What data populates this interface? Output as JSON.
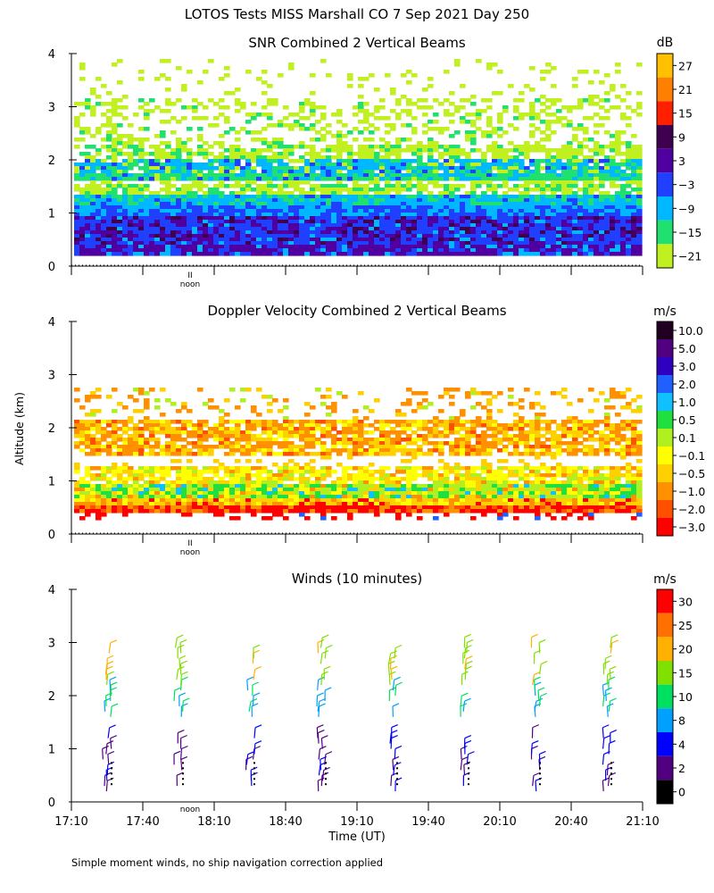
{
  "title": "LOTOS Tests MISS Marshall CO   7 Sep 2021 Day 250",
  "footnote": "Simple moment winds, no ship navigation correction applied",
  "ylabel": "Altitude (km)",
  "xlabel": "Time (UT)",
  "noon_label": "noon",
  "noon_mark": "II",
  "colors": {
    "background": "#ffffff",
    "axis": "#000000"
  },
  "chart_data": [
    {
      "type": "heatmap",
      "title": "SNR Combined 2 Vertical Beams",
      "ylabel": "Altitude (km)",
      "yticks": [
        "0",
        "1",
        "2",
        "3",
        "4"
      ],
      "ylim": [
        0,
        4
      ],
      "xlim_minutes_ut": [
        1030,
        1270
      ],
      "colorbar": {
        "unit": "dB",
        "labels": [
          "27",
          "21",
          "15",
          "9",
          "3",
          "−3",
          "−9",
          "−15",
          "−21"
        ],
        "colors": [
          "#ffc000",
          "#ff8000",
          "#ff2000",
          "#400050",
          "#5000a0",
          "#2040ff",
          "#00b8ff",
          "#20e070",
          "#c0f020"
        ]
      },
      "layers": [
        {
          "description": "strong echo",
          "alt_km": [
            0.25,
            1.05
          ],
          "values_db": [
            -3,
            9
          ]
        },
        {
          "description": "moderate echo",
          "alt_km": [
            1.05,
            1.5
          ],
          "values_db": [
            -15,
            -3
          ]
        },
        {
          "description": "elevated layer",
          "alt_km": [
            1.6,
            2.3
          ],
          "values_db": [
            -21,
            -3
          ]
        },
        {
          "description": "weak echo",
          "alt_km": [
            2.3,
            3.9
          ],
          "values_db": [
            -21,
            -15
          ]
        }
      ]
    },
    {
      "type": "heatmap",
      "title": "Doppler Velocity Combined 2 Vertical Beams",
      "ylabel": "Altitude (km)",
      "yticks": [
        "0",
        "1",
        "2",
        "3",
        "4"
      ],
      "ylim": [
        0,
        4
      ],
      "xlim_minutes_ut": [
        1030,
        1270
      ],
      "colorbar": {
        "unit": "m/s",
        "labels": [
          "10.0",
          "5.0",
          "3.0",
          "2.0",
          "1.0",
          "0.5",
          "0.1",
          "−0.1",
          "−0.5",
          "−1.0",
          "−2.0",
          "−3.0"
        ],
        "colors": [
          "#200020",
          "#500080",
          "#3000c0",
          "#2060ff",
          "#10c0ff",
          "#20e040",
          "#b0f020",
          "#ffff00",
          "#ffd000",
          "#ff9000",
          "#ff5000",
          "#ff0000"
        ]
      },
      "layers": [
        {
          "description": "near-surface downdraft band",
          "alt_km": [
            0.5,
            0.7
          ],
          "values_ms": [
            -3.0,
            -1.0
          ]
        },
        {
          "description": "lower layer",
          "alt_km": [
            0.7,
            1.3
          ],
          "values_ms": [
            -0.5,
            1.0
          ]
        },
        {
          "description": "elevated layer",
          "alt_km": [
            1.5,
            2.2
          ],
          "values_ms": [
            -1.0,
            -0.1
          ]
        },
        {
          "description": "sparse upper returns",
          "alt_km": [
            2.2,
            2.8
          ],
          "values_ms": [
            -1.0,
            0.5
          ]
        }
      ]
    },
    {
      "type": "barbs",
      "title": "Winds (10 minutes)",
      "ylabel": "Altitude (km)",
      "yticks": [
        "0",
        "1",
        "2",
        "3",
        "4"
      ],
      "ylim": [
        0,
        4
      ],
      "xlabel": "Time (UT)",
      "xticks": [
        "17:10",
        "17:40",
        "18:10",
        "18:40",
        "19:10",
        "19:40",
        "20:10",
        "20:40",
        "21:10"
      ],
      "xlim_minutes_ut": [
        1030,
        1270
      ],
      "colorbar": {
        "unit": "m/s",
        "labels": [
          "30",
          "25",
          "20",
          "15",
          "10",
          "8",
          "4",
          "2",
          "0"
        ],
        "colors": [
          "#ff0000",
          "#ff7000",
          "#ffb000",
          "#80e000",
          "#00e060",
          "#00a0ff",
          "#0000ff",
          "#500080",
          "#000000"
        ]
      },
      "profiles_ut": [
        "17:25",
        "17:55",
        "18:25",
        "18:55",
        "19:25",
        "19:55",
        "20:25",
        "20:55"
      ],
      "profile_minutes_ut": [
        1045,
        1075,
        1105,
        1135,
        1165,
        1195,
        1225,
        1255
      ],
      "speed_ranges_ms": [
        {
          "alt_km": [
            0.2,
            1.3
          ],
          "speed": [
            2,
            6
          ]
        },
        {
          "alt_km": [
            1.6,
            2.2
          ],
          "speed": [
            8,
            12
          ]
        },
        {
          "alt_km": [
            2.2,
            3.0
          ],
          "speed": [
            15,
            22
          ]
        }
      ]
    }
  ]
}
